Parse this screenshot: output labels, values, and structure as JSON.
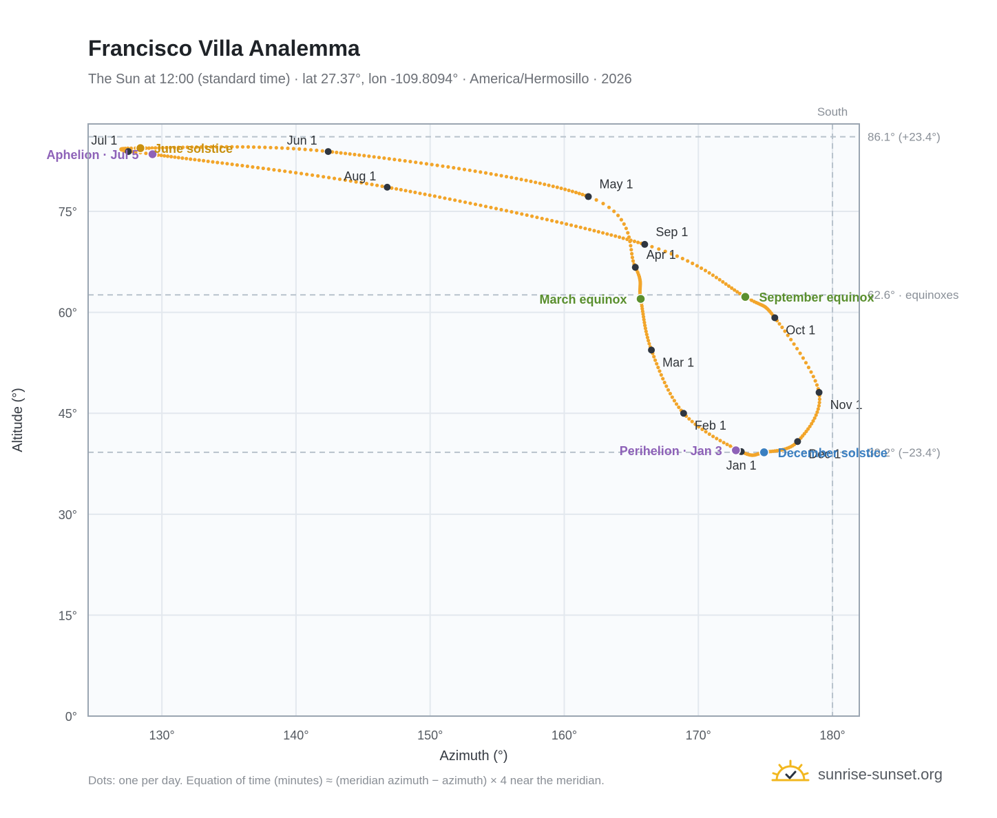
{
  "title": "Francisco Villa Analemma",
  "subtitle": "The Sun at 12:00 (standard time) · lat 27.37°, lon -109.8094° · America/Hermosillo · 2026",
  "footnote": "Dots: one per day. Equation of time (minutes) ≈ (meridian azimuth − azimuth) × 4 near the meridian.",
  "brand": {
    "name": "sunrise-sunset.org",
    "icon": "sunrise-logo-icon"
  },
  "colors": {
    "analemma": "#f2a52a",
    "month_dot": "#2f3640",
    "solstice_june": "#c8900f",
    "solstice_december": "#3a7fc1",
    "equinox": "#5a8f2e",
    "apsis": "#8e62b8",
    "reference_line": "#b8c2cc",
    "plot_bg": "#f9fbfd",
    "frame": "#9aa5b1"
  },
  "chart_data": {
    "type": "scatter",
    "xlabel": "Azimuth (°)",
    "ylabel": "Altitude (°)",
    "xlim": [
      124.5,
      182
    ],
    "ylim": [
      0,
      88
    ],
    "xticks": [
      130,
      140,
      150,
      160,
      170,
      180
    ],
    "xtick_labels": [
      "130°",
      "140°",
      "150°",
      "160°",
      "170°",
      "180°"
    ],
    "yticks": [
      0,
      15,
      30,
      45,
      60,
      75
    ],
    "ytick_labels": [
      "0°",
      "15°",
      "30°",
      "45°",
      "60°",
      "75°"
    ],
    "grid": true,
    "reference_lines": {
      "vertical": {
        "x": 180,
        "label": "South"
      },
      "horizontal": [
        {
          "y": 86.1,
          "label": "86.1° (+23.4°)"
        },
        {
          "y": 62.6,
          "label": "62.6° · equinoxes"
        },
        {
          "y": 39.2,
          "label": "39.2° (−23.4°)"
        }
      ]
    },
    "analemma_path": [
      {
        "date": "Jan 1",
        "az": 173.2,
        "alt": 39.3
      },
      {
        "date": "Feb 1",
        "az": 168.9,
        "alt": 45.0
      },
      {
        "date": "Mar 1",
        "az": 166.5,
        "alt": 54.4
      },
      {
        "date": "Mar 20",
        "az": 165.7,
        "alt": 62.0
      },
      {
        "date": "Apr 1",
        "az": 165.3,
        "alt": 66.7
      },
      {
        "date": "May 1",
        "az": 161.8,
        "alt": 77.2
      },
      {
        "date": "Jun 1",
        "az": 142.4,
        "alt": 83.9
      },
      {
        "date": "Jun 21",
        "az": 128.4,
        "alt": 84.4
      },
      {
        "date": "Jul 1",
        "az": 127.5,
        "alt": 83.9
      },
      {
        "date": "Jul 5",
        "az": 129.3,
        "alt": 83.5
      },
      {
        "date": "Aug 1",
        "az": 146.8,
        "alt": 78.6
      },
      {
        "date": "Sep 1",
        "az": 166.0,
        "alt": 70.1
      },
      {
        "date": "Sep 23",
        "az": 173.5,
        "alt": 62.3
      },
      {
        "date": "Oct 1",
        "az": 175.7,
        "alt": 59.2
      },
      {
        "date": "Nov 1",
        "az": 179.0,
        "alt": 48.1
      },
      {
        "date": "Dec 1",
        "az": 177.4,
        "alt": 40.8
      },
      {
        "date": "Dec 21",
        "az": 174.9,
        "alt": 39.2
      },
      {
        "date": "Jan 1",
        "az": 173.2,
        "alt": 39.3
      }
    ],
    "month_points": [
      {
        "label": "Jan 1",
        "az": 173.2,
        "alt": 39.3,
        "anchor": "below"
      },
      {
        "label": "Feb 1",
        "az": 168.9,
        "alt": 45.0,
        "anchor": "below-right"
      },
      {
        "label": "Mar 1",
        "az": 166.5,
        "alt": 54.4,
        "anchor": "below-right"
      },
      {
        "label": "Apr 1",
        "az": 165.3,
        "alt": 66.7,
        "anchor": "above-right"
      },
      {
        "label": "May 1",
        "az": 161.8,
        "alt": 77.2,
        "anchor": "above-right"
      },
      {
        "label": "Jun 1",
        "az": 142.4,
        "alt": 83.9,
        "anchor": "above-left"
      },
      {
        "label": "Jul 1",
        "az": 127.5,
        "alt": 83.9,
        "anchor": "above-left"
      },
      {
        "label": "Aug 1",
        "az": 146.8,
        "alt": 78.6,
        "anchor": "above-left"
      },
      {
        "label": "Sep 1",
        "az": 166.0,
        "alt": 70.1,
        "anchor": "above-right"
      },
      {
        "label": "Oct 1",
        "az": 175.7,
        "alt": 59.2,
        "anchor": "below-right"
      },
      {
        "label": "Nov 1",
        "az": 179.0,
        "alt": 48.1,
        "anchor": "below-right"
      },
      {
        "label": "Dec 1",
        "az": 177.4,
        "alt": 40.8,
        "anchor": "below-right"
      }
    ],
    "events": [
      {
        "label": "June solstice",
        "az": 128.4,
        "alt": 84.4,
        "color_key": "solstice_june",
        "side": "right"
      },
      {
        "label": "Aphelion · Jul 5",
        "az": 129.3,
        "alt": 83.5,
        "color_key": "apsis",
        "side": "left"
      },
      {
        "label": "March equinox",
        "az": 165.7,
        "alt": 62.0,
        "color_key": "equinox",
        "side": "left"
      },
      {
        "label": "September equinox",
        "az": 173.5,
        "alt": 62.3,
        "color_key": "equinox",
        "side": "right"
      },
      {
        "label": "Perihelion · Jan 3",
        "az": 172.8,
        "alt": 39.5,
        "color_key": "apsis",
        "side": "left"
      },
      {
        "label": "December solstice",
        "az": 174.9,
        "alt": 39.2,
        "color_key": "solstice_december",
        "side": "right"
      }
    ]
  }
}
